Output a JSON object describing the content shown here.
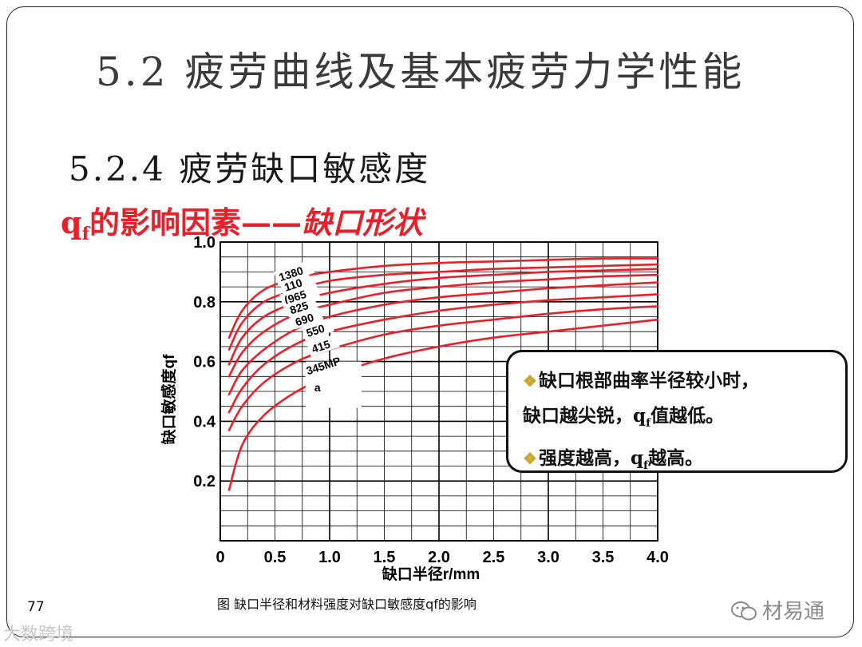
{
  "slide": {
    "title": "5.2  疲劳曲线及基本疲劳力学性能",
    "subtitle": "5.2.4  疲劳缺口敏感度",
    "heading": {
      "q": "q",
      "sub": "f",
      "text": "的影响因素——",
      "italic": "缺口形状"
    },
    "callout": {
      "line1": "缺口根部曲率半径较小时，",
      "line2_a": "缺口越尖锐，q",
      "line2_sub": "f",
      "line2_b": "值越低。",
      "line3_a": "强度越高，q",
      "line3_sub": "f",
      "line3_b": "越高。",
      "bullet_icon": "diamond-bullet-icon"
    },
    "caption": "图  缺口半径和材料强度对缺口敏感度qf的影响",
    "page_number": "77",
    "source": "材易通",
    "watermark": "大数跨境"
  },
  "chart_data": {
    "type": "line",
    "xlabel": "缺口半径r/mm",
    "ylabel": "缺口敏感度qf",
    "xlim": [
      0,
      4.0
    ],
    "ylim": [
      0,
      1.0
    ],
    "x_ticks": [
      "0",
      "0.5",
      "1.0",
      "1.5",
      "2.0",
      "2.5",
      "3.0",
      "3.5",
      "4.0"
    ],
    "y_ticks": [
      "0.2",
      "0.4",
      "0.6",
      "0.8",
      "1.0"
    ],
    "grid": true,
    "line_color": "#e8202a",
    "series": [
      {
        "name": "1380",
        "points": [
          [
            0.08,
            0.68
          ],
          [
            0.2,
            0.77
          ],
          [
            0.4,
            0.84
          ],
          [
            0.7,
            0.88
          ],
          [
            1.0,
            0.9
          ],
          [
            1.5,
            0.92
          ],
          [
            2.0,
            0.93
          ],
          [
            2.5,
            0.935
          ],
          [
            3.0,
            0.94
          ],
          [
            3.5,
            0.945
          ],
          [
            4.0,
            0.945
          ]
        ]
      },
      {
        "name": "110",
        "points": [
          [
            0.08,
            0.64
          ],
          [
            0.2,
            0.73
          ],
          [
            0.4,
            0.8
          ],
          [
            0.7,
            0.84
          ],
          [
            1.0,
            0.87
          ],
          [
            1.5,
            0.89
          ],
          [
            2.0,
            0.9
          ],
          [
            2.5,
            0.91
          ],
          [
            3.0,
            0.915
          ],
          [
            3.5,
            0.92
          ],
          [
            4.0,
            0.925
          ]
        ]
      },
      {
        "name": "(965",
        "points": [
          [
            0.08,
            0.59
          ],
          [
            0.2,
            0.68
          ],
          [
            0.4,
            0.75
          ],
          [
            0.7,
            0.8
          ],
          [
            1.0,
            0.83
          ],
          [
            1.5,
            0.86
          ],
          [
            2.0,
            0.88
          ],
          [
            2.5,
            0.89
          ],
          [
            3.0,
            0.9
          ],
          [
            3.5,
            0.905
          ],
          [
            4.0,
            0.91
          ]
        ]
      },
      {
        "name": "825",
        "points": [
          [
            0.08,
            0.55
          ],
          [
            0.2,
            0.63
          ],
          [
            0.4,
            0.7
          ],
          [
            0.7,
            0.76
          ],
          [
            1.0,
            0.79
          ],
          [
            1.5,
            0.83
          ],
          [
            2.0,
            0.85
          ],
          [
            2.5,
            0.865
          ],
          [
            3.0,
            0.875
          ],
          [
            3.5,
            0.885
          ],
          [
            4.0,
            0.89
          ]
        ]
      },
      {
        "name": "690",
        "points": [
          [
            0.08,
            0.49
          ],
          [
            0.2,
            0.57
          ],
          [
            0.4,
            0.64
          ],
          [
            0.7,
            0.71
          ],
          [
            1.0,
            0.75
          ],
          [
            1.5,
            0.79
          ],
          [
            2.0,
            0.815
          ],
          [
            2.5,
            0.83
          ],
          [
            3.0,
            0.845
          ],
          [
            3.5,
            0.855
          ],
          [
            4.0,
            0.865
          ]
        ]
      },
      {
        "name": "550",
        "points": [
          [
            0.08,
            0.43
          ],
          [
            0.2,
            0.51
          ],
          [
            0.4,
            0.59
          ],
          [
            0.7,
            0.66
          ],
          [
            1.0,
            0.7
          ],
          [
            1.5,
            0.74
          ],
          [
            2.0,
            0.77
          ],
          [
            2.5,
            0.79
          ],
          [
            3.0,
            0.805
          ],
          [
            3.5,
            0.815
          ],
          [
            4.0,
            0.825
          ]
        ]
      },
      {
        "name": "415",
        "points": [
          [
            0.08,
            0.37
          ],
          [
            0.2,
            0.45
          ],
          [
            0.4,
            0.53
          ],
          [
            0.7,
            0.6
          ],
          [
            1.0,
            0.64
          ],
          [
            1.5,
            0.69
          ],
          [
            2.0,
            0.72
          ],
          [
            2.5,
            0.74
          ],
          [
            3.0,
            0.76
          ],
          [
            3.5,
            0.775
          ],
          [
            4.0,
            0.785
          ]
        ]
      },
      {
        "name": "345MP",
        "points": [
          [
            0.08,
            0.17
          ],
          [
            0.2,
            0.32
          ],
          [
            0.4,
            0.42
          ],
          [
            0.7,
            0.5
          ],
          [
            1.0,
            0.55
          ],
          [
            1.5,
            0.61
          ],
          [
            2.0,
            0.65
          ],
          [
            2.5,
            0.68
          ],
          [
            3.0,
            0.7
          ],
          [
            3.5,
            0.72
          ],
          [
            4.0,
            0.74
          ]
        ]
      }
    ],
    "annotations": [
      "a"
    ]
  }
}
